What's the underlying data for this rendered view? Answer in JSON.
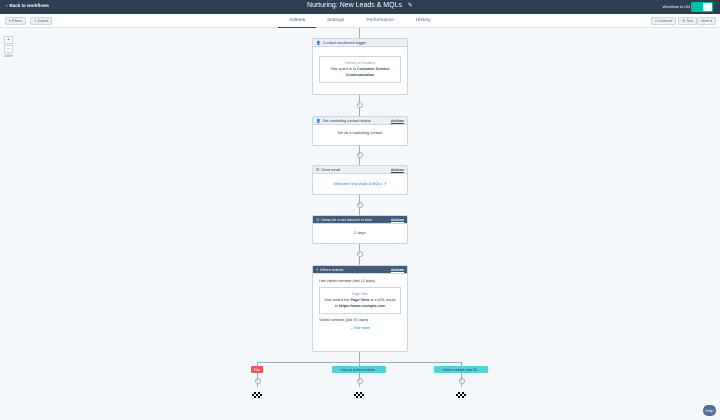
{
  "header": {
    "back_label": "Back to workflows",
    "title": "Nurturing: New Leads & MQLs",
    "status_label": "Workflow is ON"
  },
  "toolbar": {
    "left_buttons": [
      "Filters",
      "Export"
    ],
    "right_buttons": [
      "Unenroll",
      "Test",
      "More"
    ]
  },
  "tabs": [
    {
      "label": "Actions",
      "active": true
    },
    {
      "label": "Settings",
      "active": false
    },
    {
      "label": "Performance",
      "active": false
    },
    {
      "label": "History",
      "active": false
    }
  ],
  "zoom": {
    "in": "+",
    "out": "−",
    "value": "100%"
  },
  "steps": {
    "trigger": {
      "title": "Contact enrollment trigger",
      "box_label": "Refresh & Condition",
      "text_pre": "Has opted in to",
      "text_link": "Customer Service Communication"
    },
    "set_status": {
      "title": "Set marketing contact status",
      "actions": "Actions",
      "body": "Set as a marketing contact"
    },
    "send_email": {
      "title": "Send email",
      "actions": "Actions",
      "body": "Welcome new leads & MQLs"
    },
    "delay": {
      "title": "Delay for a set amount of time",
      "actions": "Actions",
      "body": "2 days"
    },
    "branch": {
      "title": "If/then branch",
      "actions": "Actions",
      "line1": "Has visited website (last 12 days)",
      "box_label": "Page View",
      "box_text_pre": "Has visited the",
      "box_text_bold": "Page View",
      "box_text_mid": "of a URL equal to",
      "box_text_link": "https://www.example.com",
      "line2": "Visited website (last 90 days)",
      "see_more": "See more"
    }
  },
  "branches": [
    {
      "label": "Else",
      "color": "#f2545b"
    },
    {
      "label": "Has not visited website...",
      "color": "#51d3d9"
    },
    {
      "label": "Visited website (last 90...",
      "color": "#51d3d9"
    }
  ],
  "help": "Help"
}
